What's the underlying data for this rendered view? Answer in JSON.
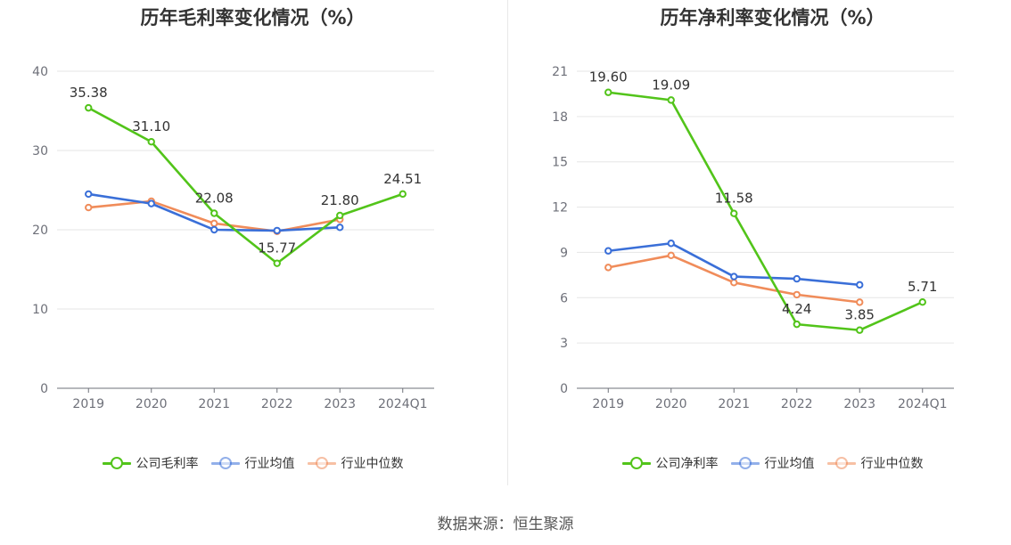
{
  "source_label": "数据来源：恒生聚源",
  "chart_data": [
    {
      "type": "line",
      "title": "历年毛利率变化情况（%）",
      "categories": [
        "2019",
        "2020",
        "2021",
        "2022",
        "2023",
        "2024Q1"
      ],
      "ylim": [
        0,
        40
      ],
      "yticks": [
        0,
        10,
        20,
        30,
        40
      ],
      "grid": true,
      "legend_position": "bottom",
      "series": [
        {
          "name": "公司毛利率",
          "color": "#52c41a",
          "labeled": true,
          "values": [
            35.38,
            31.1,
            22.08,
            15.77,
            21.8,
            24.51
          ]
        },
        {
          "name": "行业均值",
          "color": "#3a6fd8",
          "labeled": false,
          "values": [
            24.5,
            23.3,
            20.0,
            19.9,
            20.3,
            null
          ]
        },
        {
          "name": "行业中位数",
          "color": "#f08c5a",
          "labeled": false,
          "values": [
            22.8,
            23.6,
            20.8,
            19.8,
            21.3,
            null
          ]
        }
      ]
    },
    {
      "type": "line",
      "title": "历年净利率变化情况（%）",
      "categories": [
        "2019",
        "2020",
        "2021",
        "2022",
        "2023",
        "2024Q1"
      ],
      "ylim": [
        0,
        21
      ],
      "yticks": [
        0,
        3,
        6,
        9,
        12,
        15,
        18,
        21
      ],
      "grid": true,
      "legend_position": "bottom",
      "series": [
        {
          "name": "公司净利率",
          "color": "#52c41a",
          "labeled": true,
          "values": [
            19.6,
            19.09,
            11.58,
            4.24,
            3.85,
            5.71
          ]
        },
        {
          "name": "行业均值",
          "color": "#3a6fd8",
          "labeled": false,
          "values": [
            9.1,
            9.6,
            7.4,
            7.25,
            6.85,
            null
          ]
        },
        {
          "name": "行业中位数",
          "color": "#f08c5a",
          "labeled": false,
          "values": [
            8.0,
            8.8,
            7.0,
            6.2,
            5.7,
            null
          ]
        }
      ]
    }
  ]
}
